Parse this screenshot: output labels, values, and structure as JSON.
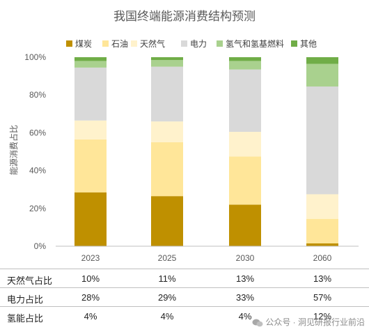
{
  "colors": {
    "煤炭": "#bf9000",
    "石油": "#ffe699",
    "天然气": "#fff2cc",
    "电力": "#d9d9d9",
    "氢气和氢基燃料": "#a9d18e",
    "其他": "#70ad47"
  },
  "chart_data": {
    "type": "bar",
    "stacked": true,
    "title": "我国终端能源消费结构预测",
    "xlabel": "",
    "ylabel": "能源消费占比",
    "categories": [
      "2023",
      "2025",
      "2030",
      "2060"
    ],
    "ylim": [
      0,
      100
    ],
    "yticks": [
      "0%",
      "20%",
      "40%",
      "60%",
      "80%",
      "100%"
    ],
    "legend_position": "top",
    "grid": false,
    "series": [
      {
        "name": "煤炭",
        "values": [
          28.5,
          26.5,
          22,
          1.5
        ]
      },
      {
        "name": "石油",
        "values": [
          28,
          28.5,
          25.5,
          13
        ]
      },
      {
        "name": "天然气",
        "values": [
          10,
          11,
          13,
          13
        ]
      },
      {
        "name": "电力",
        "values": [
          28,
          29,
          33,
          57
        ]
      },
      {
        "name": "氢气和氢基燃料",
        "values": [
          3.5,
          3.5,
          4.5,
          12
        ]
      },
      {
        "name": "其他",
        "values": [
          2,
          1.5,
          2,
          3.5
        ]
      }
    ]
  },
  "table": {
    "rows": [
      {
        "label": "天然气占比",
        "values": [
          "10%",
          "11%",
          "13%",
          "13%"
        ]
      },
      {
        "label": "电力占比",
        "values": [
          "28%",
          "29%",
          "33%",
          "57%"
        ]
      },
      {
        "label": "氢能占比",
        "values": [
          "4%",
          "4%",
          "4%",
          "12%"
        ]
      }
    ]
  },
  "watermark": "公众号 · 洞见研报行业前沿"
}
